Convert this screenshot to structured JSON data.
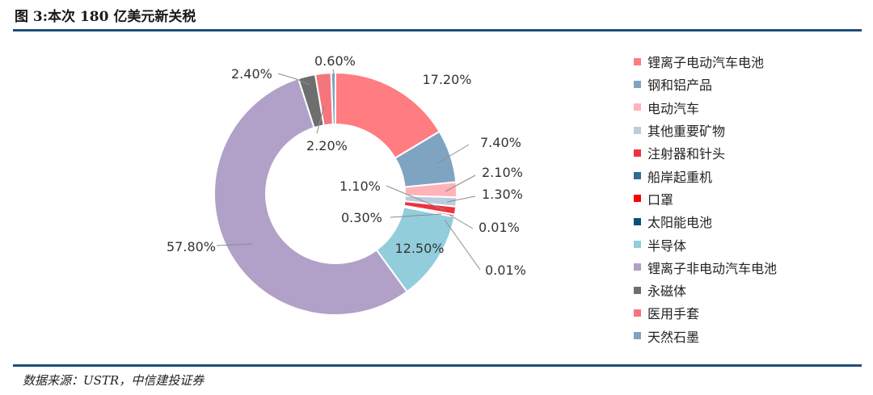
{
  "title": "图 3:本次 180 亿美元新关税",
  "source": "数据来源：USTR，中信建投证券",
  "chart_data": {
    "type": "pie",
    "variant": "donut",
    "legend_position": "right",
    "series": [
      {
        "name": "锂离子电动汽车电池",
        "value": 17.2,
        "label": "17.20%",
        "color": "#ff7c80"
      },
      {
        "name": "钢和铝产品",
        "value": 7.4,
        "label": "7.40%",
        "color": "#7fa4c1"
      },
      {
        "name": "电动汽车",
        "value": 2.1,
        "label": "2.10%",
        "color": "#ffb3b7"
      },
      {
        "name": "其他重要矿物",
        "value": 1.3,
        "label": "1.30%",
        "color": "#b9cde0"
      },
      {
        "name": "注射器和针头",
        "value": 1.1,
        "label": "1.10%",
        "color": "#ee3340"
      },
      {
        "name": "船岸起重机",
        "value": 0.01,
        "label": "0.01%",
        "color": "#2f6d99"
      },
      {
        "name": "口罩",
        "value": 0.3,
        "label": "0.30%",
        "color": "#ff0000"
      },
      {
        "name": "太阳能电池",
        "value": 0.01,
        "label": "0.01%",
        "color": "#0b4f7a"
      },
      {
        "name": "半导体",
        "value": 12.5,
        "label": "12.50%",
        "color": "#92cddc"
      },
      {
        "name": "锂离子非电动汽车电池",
        "value": 57.8,
        "label": "57.80%",
        "color": "#b1a0c7"
      },
      {
        "name": "永磁体",
        "value": 2.4,
        "label": "2.40%",
        "color": "#6e6e6e"
      },
      {
        "name": "医用手套",
        "value": 2.2,
        "label": "2.20%",
        "color": "#f4767c"
      },
      {
        "name": "天然石墨",
        "value": 0.6,
        "label": "0.60%",
        "color": "#7fa4c1"
      }
    ]
  }
}
